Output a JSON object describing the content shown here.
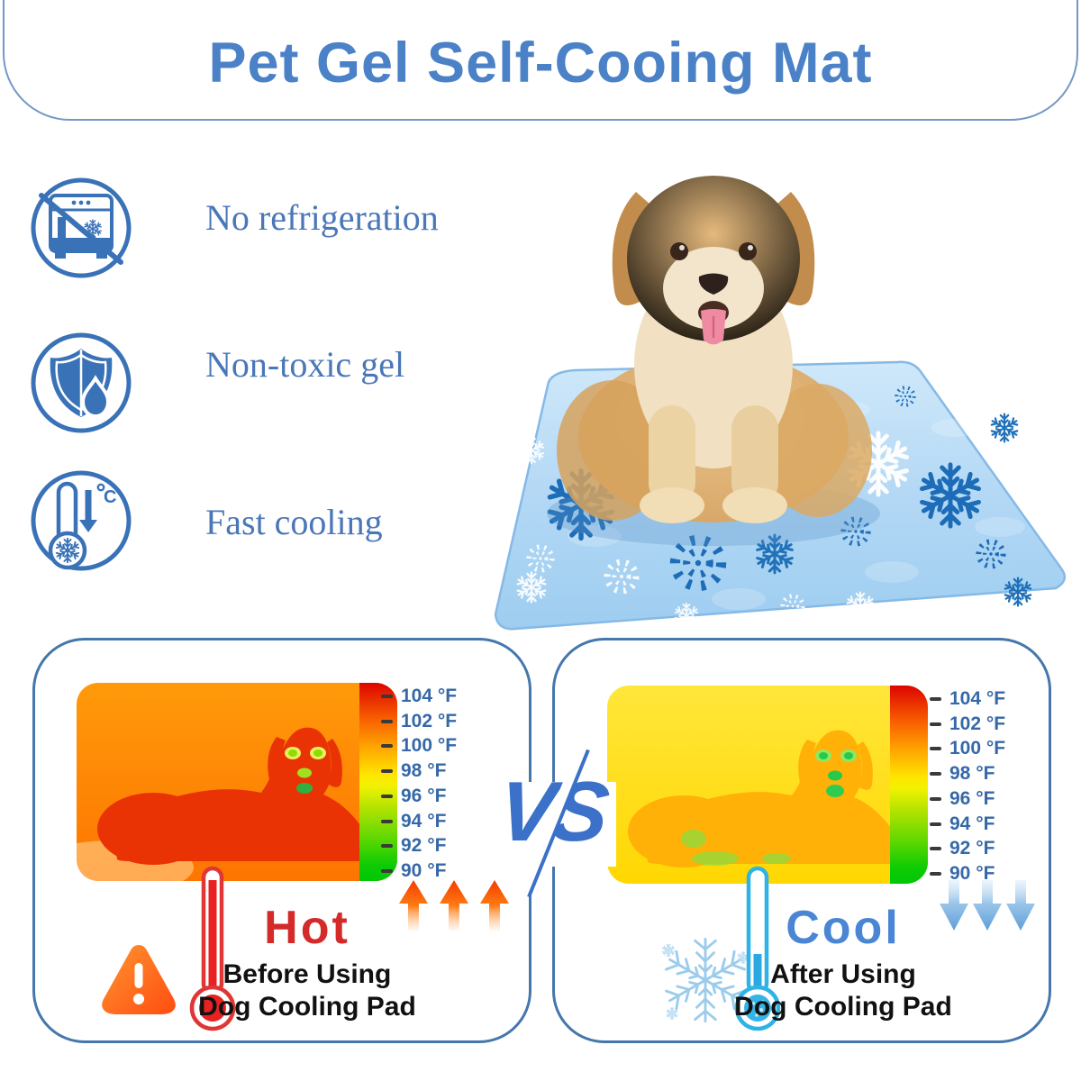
{
  "header": {
    "title": "Pet Gel Self-Cooing Mat"
  },
  "features": [
    {
      "label": "No refrigeration",
      "icon": "no-refrigeration-icon"
    },
    {
      "label": "Non-toxic gel",
      "icon": "shield-drop-icon"
    },
    {
      "label": "Fast cooling",
      "icon": "thermometer-cold-icon"
    }
  ],
  "comparison": {
    "vs_label": "VS",
    "temperature_scale": [
      "104 °F",
      "102 °F",
      "100 °F",
      "98 °F",
      "96 °F",
      "94 °F",
      "92 °F",
      "90 °F"
    ],
    "before": {
      "title": "Hot",
      "line1": "Before Using",
      "line2": "Dog Cooling Pad"
    },
    "after": {
      "title": "Cool",
      "line1": "After Using",
      "line2": "Dog Cooling Pad"
    }
  },
  "colors": {
    "title_blue": "#4b82c7",
    "icon_blue": "#3a72b8",
    "feature_text_blue": "#4a77b8",
    "panel_border_blue": "#4577ad",
    "temp_label_blue": "#3668a8",
    "hot_red": "#d42a2a",
    "cool_blue": "#4a86d4",
    "vs_blue": "#3b71c8",
    "mat_blue": "#aed4f2"
  }
}
